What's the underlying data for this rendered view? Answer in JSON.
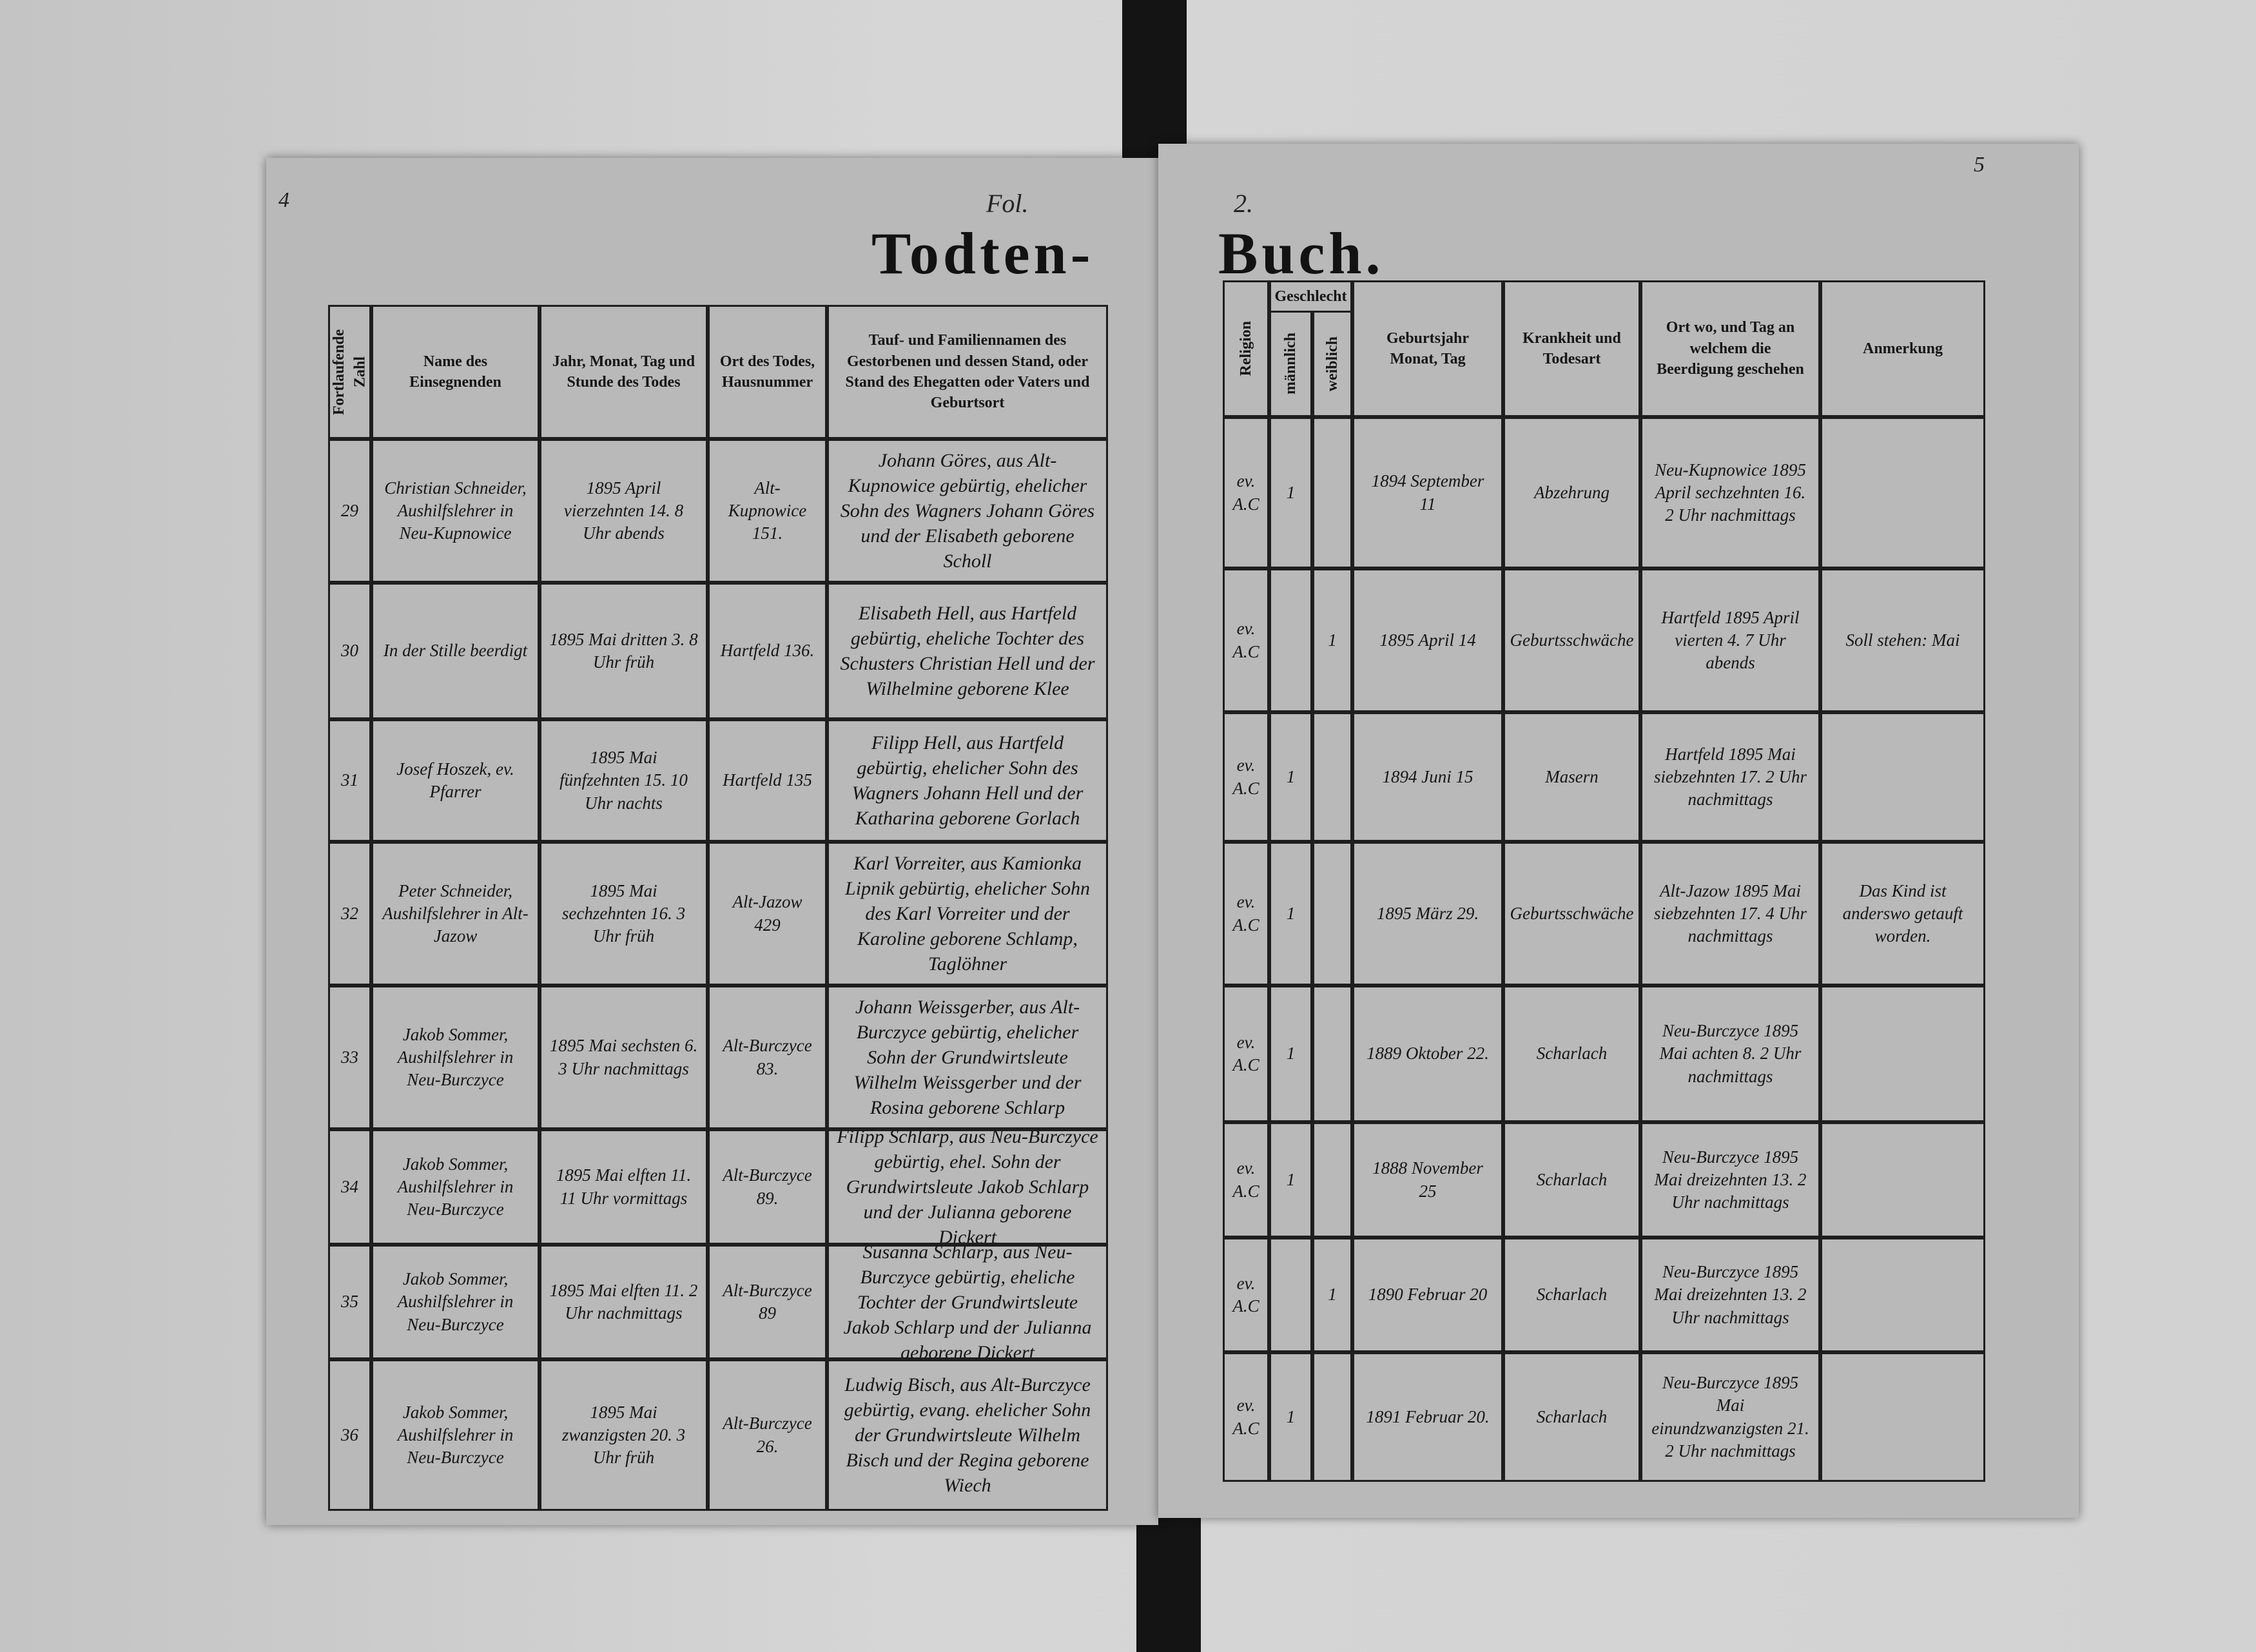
{
  "page_marks": {
    "left_corner": "4",
    "right_corner": "5",
    "folio": "Fol.",
    "page_number": "2."
  },
  "title": {
    "left": "Todten-",
    "right": "Buch."
  },
  "left_columns": {
    "number": "Fortlaufende Zahl",
    "officiant": "Name des Einsegnenden",
    "death": "Jahr, Monat, Tag und Stunde des Todes",
    "place": "Ort des Todes, Hausnummer",
    "names": "Tauf- und Familiennamen des Gestorbenen und dessen Stand, oder Stand des Ehegatten oder Vaters und Geburtsort"
  },
  "right_columns": {
    "religion": "Religion",
    "sex": "Geschlecht",
    "male": "männlich",
    "female": "weiblich",
    "birth": "Geburtsjahr Monat, Tag",
    "cause": "Krankheit und Todesart",
    "burial": "Ort wo, und Tag an welchem die Beerdigung geschehen",
    "remark": "Anmerkung"
  },
  "rows": [
    {
      "number": "29",
      "officiant": "Christian Schneider, Aushilfslehrer in Neu-Kupnowice",
      "death": "1895 April vierzehnten 14. 8 Uhr abends",
      "place": "Alt-Kupnowice 151.",
      "names": "Johann Göres, aus Alt-Kupnowice gebürtig, ehelicher Sohn des Wagners Johann Göres und der Elisabeth geborene Scholl",
      "religion": "ev. A.C",
      "male": "1",
      "birth": "1894 September 11",
      "cause": "Abzehrung",
      "burial": "Neu-Kupnowice 1895 April sechzehnten 16. 2 Uhr nachmittags"
    },
    {
      "number": "30",
      "officiant": "In der Stille beerdigt",
      "death": "1895 Mai dritten 3. 8 Uhr früh",
      "place": "Hartfeld 136.",
      "names": "Elisabeth Hell, aus Hartfeld gebürtig, eheliche Tochter des Schusters Christian Hell und der Wilhelmine geborene Klee",
      "religion": "ev. A.C",
      "female": "1",
      "birth": "1895 April 14",
      "cause": "Geburtsschwäche",
      "burial": "Hartfeld 1895 April vierten 4. 7 Uhr abends",
      "remark": "Soll stehen: Mai"
    },
    {
      "number": "31",
      "officiant": "Josef Hoszek, ev. Pfarrer",
      "death": "1895 Mai fünfzehnten 15. 10 Uhr nachts",
      "place": "Hartfeld 135",
      "names": "Filipp Hell, aus Hartfeld gebürtig, ehelicher Sohn des Wagners Johann Hell und der Katharina geborene Gorlach",
      "religion": "ev. A.C",
      "male": "1",
      "birth": "1894 Juni 15",
      "cause": "Masern",
      "burial": "Hartfeld 1895 Mai siebzehnten 17. 2 Uhr nachmittags"
    },
    {
      "number": "32",
      "officiant": "Peter Schneider, Aushilfslehrer in Alt-Jazow",
      "death": "1895 Mai sechzehnten 16. 3 Uhr früh",
      "place": "Alt-Jazow 429",
      "names": "Karl Vorreiter, aus Kamionka Lipnik gebürtig, ehelicher Sohn des Karl Vorreiter und der Karoline geborene Schlamp, Taglöhner",
      "religion": "ev. A.C",
      "male": "1",
      "birth": "1895 März 29.",
      "cause": "Geburtsschwäche",
      "burial": "Alt-Jazow 1895 Mai siebzehnten 17. 4 Uhr nachmittags",
      "remark": "Das Kind ist anderswo getauft worden."
    },
    {
      "number": "33",
      "officiant": "Jakob Sommer, Aushilfslehrer in Neu-Burczyce",
      "death": "1895 Mai sechsten 6. 3 Uhr nachmittags",
      "place": "Alt-Burczyce 83.",
      "names": "Johann Weissgerber, aus Alt-Burczyce gebürtig, ehelicher Sohn der Grundwirtsleute Wilhelm Weissgerber und der Rosina geborene Schlarp",
      "religion": "ev. A.C",
      "male": "1",
      "birth": "1889 Oktober 22.",
      "cause": "Scharlach",
      "burial": "Neu-Burczyce 1895 Mai achten 8. 2 Uhr nachmittags"
    },
    {
      "number": "34",
      "officiant": "Jakob Sommer, Aushilfslehrer in Neu-Burczyce",
      "death": "1895 Mai elften 11. 11 Uhr vormittags",
      "place": "Alt-Burczyce 89.",
      "names": "Filipp Schlarp, aus Neu-Burczyce gebürtig, ehel. Sohn der Grundwirtsleute Jakob Schlarp und der Julianna geborene Dickert",
      "religion": "ev. A.C",
      "male": "1",
      "birth": "1888 November 25",
      "cause": "Scharlach",
      "burial": "Neu-Burczyce 1895 Mai dreizehnten 13. 2 Uhr nachmittags"
    },
    {
      "number": "35",
      "officiant": "Jakob Sommer, Aushilfslehrer in Neu-Burczyce",
      "death": "1895 Mai elften 11. 2 Uhr nachmittags",
      "place": "Alt-Burczyce 89",
      "names": "Susanna Schlarp, aus Neu-Burczyce gebürtig, eheliche Tochter der Grundwirtsleute Jakob Schlarp und der Julianna geborene Dickert",
      "religion": "ev. A.C",
      "female": "1",
      "birth": "1890 Februar 20",
      "cause": "Scharlach",
      "burial": "Neu-Burczyce 1895 Mai dreizehnten 13. 2 Uhr nachmittags"
    },
    {
      "number": "36",
      "officiant": "Jakob Sommer, Aushilfslehrer in Neu-Burczyce",
      "death": "1895 Mai zwanzigsten 20. 3 Uhr früh",
      "place": "Alt-Burczyce 26.",
      "names": "Ludwig Bisch, aus Alt-Burczyce gebürtig, evang. ehelicher Sohn der Grundwirtsleute Wilhelm Bisch und der Regina geborene Wiech",
      "religion": "ev. A.C",
      "male": "1",
      "birth": "1891 Februar 20.",
      "cause": "Scharlach",
      "burial": "Neu-Burczyce 1895 Mai einundzwanzigsten 21. 2 Uhr nachmittags"
    }
  ]
}
